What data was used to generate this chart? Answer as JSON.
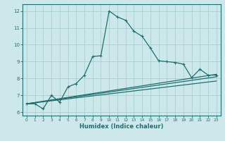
{
  "xlabel": "Humidex (Indice chaleur)",
  "bg_color": "#cce8ea",
  "grid_color": "#a8cfd2",
  "line_color": "#1e7070",
  "xlim": [
    -0.5,
    23.5
  ],
  "ylim": [
    5.8,
    12.4
  ],
  "xticks": [
    0,
    1,
    2,
    3,
    4,
    5,
    6,
    7,
    8,
    9,
    10,
    11,
    12,
    13,
    14,
    15,
    16,
    17,
    18,
    19,
    20,
    21,
    22,
    23
  ],
  "yticks": [
    6,
    7,
    8,
    9,
    10,
    11,
    12
  ],
  "main_x": [
    0,
    1,
    2,
    3,
    4,
    5,
    6,
    7,
    8,
    9,
    10,
    11,
    12,
    13,
    14,
    15,
    16,
    17,
    18,
    19,
    20,
    21,
    22,
    23
  ],
  "main_y": [
    6.5,
    6.5,
    6.2,
    7.0,
    6.6,
    7.5,
    7.7,
    8.2,
    9.3,
    9.35,
    12.0,
    11.65,
    11.45,
    10.8,
    10.5,
    9.8,
    9.05,
    9.0,
    8.95,
    8.85,
    8.05,
    8.55,
    8.2,
    8.2
  ],
  "fan_lines": [
    {
      "x": [
        0,
        23
      ],
      "y": [
        6.5,
        8.25
      ]
    },
    {
      "x": [
        0,
        23
      ],
      "y": [
        6.5,
        8.1
      ]
    },
    {
      "x": [
        0,
        23
      ],
      "y": [
        6.5,
        7.85
      ]
    }
  ]
}
